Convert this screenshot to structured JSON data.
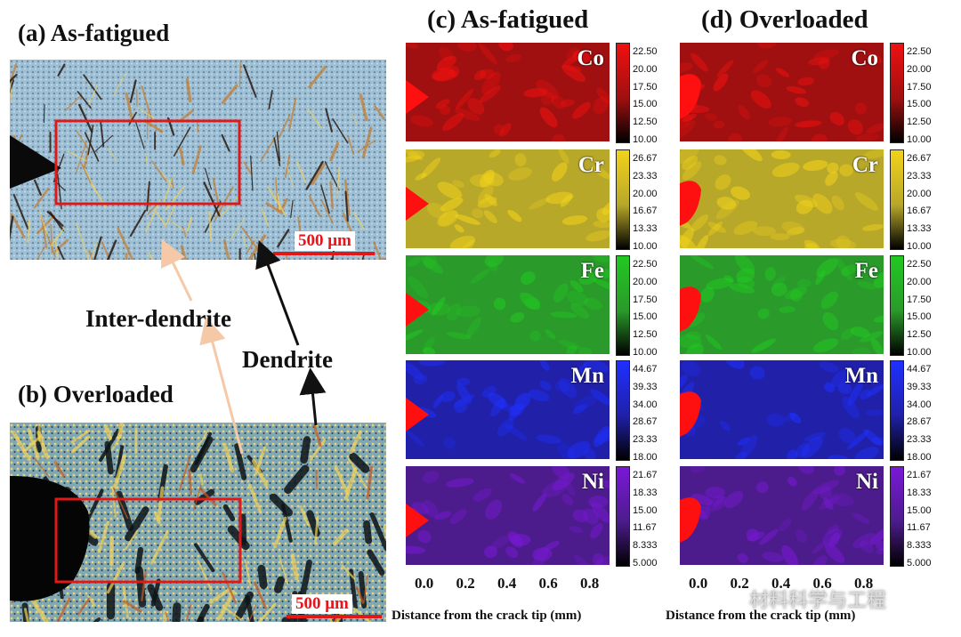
{
  "panels": {
    "a": {
      "title": "(a) As-fatigued",
      "scale_bar": "500 μm"
    },
    "b": {
      "title": "(b) Overloaded",
      "scale_bar": "500 μm"
    },
    "c": {
      "title": "(c) As-fatigued"
    },
    "d": {
      "title": "(d) Overloaded"
    }
  },
  "callouts": {
    "inter_dendrite": "Inter-dendrite",
    "dendrite": "Dendrite"
  },
  "elements": [
    {
      "symbol": "Co",
      "color_hi": "#f01010",
      "color_mid": "#a01010",
      "color_lo": "#000000",
      "ticks": [
        "22.50",
        "20.00",
        "17.50",
        "15.00",
        "12.50",
        "10.00"
      ]
    },
    {
      "symbol": "Cr",
      "color_hi": "#f2d21a",
      "color_mid": "#b8a82a",
      "color_lo": "#000000",
      "ticks": [
        "26.67",
        "23.33",
        "20.00",
        "16.67",
        "13.33",
        "10.00"
      ]
    },
    {
      "symbol": "Fe",
      "color_hi": "#22c822",
      "color_mid": "#2a9a2a",
      "color_lo": "#000000",
      "ticks": [
        "22.50",
        "20.00",
        "17.50",
        "15.00",
        "12.50",
        "10.00"
      ]
    },
    {
      "symbol": "Mn",
      "color_hi": "#1f30ff",
      "color_mid": "#2020a8",
      "color_lo": "#000000",
      "ticks": [
        "44.67",
        "39.33",
        "34.00",
        "28.67",
        "23.33",
        "18.00"
      ]
    },
    {
      "symbol": "Ni",
      "color_hi": "#7a18d8",
      "color_mid": "#4c1c8c",
      "color_lo": "#000000",
      "ticks": [
        "21.67",
        "18.33",
        "15.00",
        "11.67",
        "8.333",
        "5.000"
      ]
    }
  ],
  "x_axis": {
    "ticks": [
      "0.0",
      "0.2",
      "0.4",
      "0.6",
      "0.8"
    ],
    "label": "Distance from the crack tip (mm)"
  },
  "watermark": "材料科学与工程",
  "colors": {
    "highlight_box": "#e01818",
    "crack_marker": "#ff1010",
    "arrow_light": "#f5c9a8",
    "arrow_dark": "#111111"
  }
}
